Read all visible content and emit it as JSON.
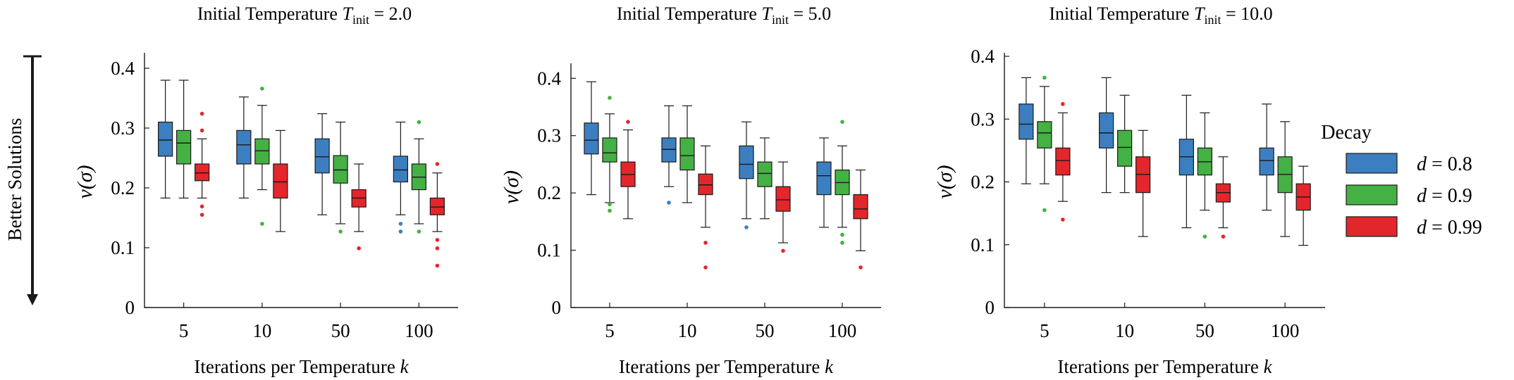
{
  "figure": {
    "side_label": "Better Solutions",
    "side_arrow": "down",
    "legend": {
      "title": "Decay",
      "entries": [
        {
          "label": "d = 0.8",
          "color": "#3c7fc0"
        },
        {
          "label": "d = 0.9",
          "color": "#45b044"
        },
        {
          "label": "d = 0.99",
          "color": "#e3262b"
        }
      ]
    }
  },
  "chart_data": [
    {
      "type": "box",
      "title": "Initial Temperature T_init = 2.0",
      "xlabel": "Iterations per Temperature k",
      "ylabel": "v(σ)",
      "ylim": [
        0,
        0.42
      ],
      "yticks": [
        0,
        0.1,
        0.2,
        0.3,
        0.4
      ],
      "ytick_labels": [
        "0",
        "0.1",
        "0.2",
        "0.3",
        "0.4"
      ],
      "categories": [
        "5",
        "10",
        "50",
        "100"
      ],
      "series": [
        {
          "name": "d = 0.8",
          "color": "#3c7fc0",
          "boxes": [
            {
              "min": 0.183,
              "q1": 0.253,
              "median": 0.28,
              "q3": 0.31,
              "max": 0.38,
              "outliers": []
            },
            {
              "min": 0.183,
              "q1": 0.24,
              "median": 0.272,
              "q3": 0.296,
              "max": 0.352,
              "outliers": []
            },
            {
              "min": 0.155,
              "q1": 0.225,
              "median": 0.252,
              "q3": 0.282,
              "max": 0.324,
              "outliers": []
            },
            {
              "min": 0.155,
              "q1": 0.21,
              "median": 0.23,
              "q3": 0.253,
              "max": 0.31,
              "outliers": [
                0.14,
                0.127
              ]
            }
          ]
        },
        {
          "name": "d = 0.9",
          "color": "#45b044",
          "boxes": [
            {
              "min": 0.183,
              "q1": 0.24,
              "median": 0.275,
              "q3": 0.296,
              "max": 0.38,
              "outliers": []
            },
            {
              "min": 0.197,
              "q1": 0.24,
              "median": 0.262,
              "q3": 0.282,
              "max": 0.338,
              "outliers": [
                0.366,
                0.14
              ]
            },
            {
              "min": 0.14,
              "q1": 0.208,
              "median": 0.23,
              "q3": 0.254,
              "max": 0.31,
              "outliers": [
                0.127
              ]
            },
            {
              "min": 0.14,
              "q1": 0.197,
              "median": 0.218,
              "q3": 0.24,
              "max": 0.282,
              "outliers": [
                0.31,
                0.127
              ]
            }
          ]
        },
        {
          "name": "d = 0.99",
          "color": "#e3262b",
          "boxes": [
            {
              "min": 0.183,
              "q1": 0.212,
              "median": 0.225,
              "q3": 0.24,
              "max": 0.282,
              "outliers": [
                0.324,
                0.296,
                0.169,
                0.155
              ]
            },
            {
              "min": 0.127,
              "q1": 0.183,
              "median": 0.21,
              "q3": 0.24,
              "max": 0.296,
              "outliers": []
            },
            {
              "min": 0.127,
              "q1": 0.168,
              "median": 0.183,
              "q3": 0.197,
              "max": 0.24,
              "outliers": [
                0.099
              ]
            },
            {
              "min": 0.127,
              "q1": 0.155,
              "median": 0.168,
              "q3": 0.183,
              "max": 0.225,
              "outliers": [
                0.24,
                0.113,
                0.099,
                0.07
              ]
            }
          ]
        }
      ]
    },
    {
      "type": "box",
      "title": "Initial Temperature T_init = 5.0",
      "xlabel": "Iterations per Temperature k",
      "ylabel": "v(σ)",
      "ylim": [
        0,
        0.42
      ],
      "yticks": [
        0,
        0.1,
        0.2,
        0.3,
        0.4
      ],
      "ytick_labels": [
        "0",
        "0.1",
        "0.2",
        "0.3",
        "0.4"
      ],
      "categories": [
        "5",
        "10",
        "50",
        "100"
      ],
      "series": [
        {
          "name": "d = 0.8",
          "color": "#3c7fc0",
          "boxes": [
            {
              "min": 0.197,
              "q1": 0.268,
              "median": 0.292,
              "q3": 0.322,
              "max": 0.394,
              "outliers": []
            },
            {
              "min": 0.211,
              "q1": 0.254,
              "median": 0.276,
              "q3": 0.296,
              "max": 0.352,
              "outliers": [
                0.183
              ]
            },
            {
              "min": 0.155,
              "q1": 0.225,
              "median": 0.25,
              "q3": 0.282,
              "max": 0.324,
              "outliers": [
                0.14
              ]
            },
            {
              "min": 0.14,
              "q1": 0.197,
              "median": 0.23,
              "q3": 0.254,
              "max": 0.296,
              "outliers": []
            }
          ]
        },
        {
          "name": "d = 0.9",
          "color": "#45b044",
          "boxes": [
            {
              "min": 0.183,
              "q1": 0.254,
              "median": 0.27,
              "q3": 0.296,
              "max": 0.338,
              "outliers": [
                0.366,
                0.18,
                0.169
              ]
            },
            {
              "min": 0.183,
              "q1": 0.24,
              "median": 0.265,
              "q3": 0.296,
              "max": 0.352,
              "outliers": []
            },
            {
              "min": 0.155,
              "q1": 0.211,
              "median": 0.234,
              "q3": 0.254,
              "max": 0.296,
              "outliers": []
            },
            {
              "min": 0.14,
              "q1": 0.197,
              "median": 0.218,
              "q3": 0.24,
              "max": 0.282,
              "outliers": [
                0.324,
                0.127,
                0.113
              ]
            }
          ]
        },
        {
          "name": "d = 0.99",
          "color": "#e3262b",
          "boxes": [
            {
              "min": 0.155,
              "q1": 0.211,
              "median": 0.232,
              "q3": 0.254,
              "max": 0.31,
              "outliers": [
                0.324
              ]
            },
            {
              "min": 0.14,
              "q1": 0.197,
              "median": 0.214,
              "q3": 0.233,
              "max": 0.282,
              "outliers": [
                0.113,
                0.07
              ]
            },
            {
              "min": 0.113,
              "q1": 0.168,
              "median": 0.188,
              "q3": 0.211,
              "max": 0.254,
              "outliers": [
                0.099
              ]
            },
            {
              "min": 0.099,
              "q1": 0.155,
              "median": 0.172,
              "q3": 0.197,
              "max": 0.24,
              "outliers": [
                0.07
              ]
            }
          ]
        }
      ]
    },
    {
      "type": "box",
      "title": "Initial Temperature T_init = 10.0",
      "xlabel": "Iterations per Temperature k",
      "ylabel": "v(σ)",
      "ylim": [
        0,
        0.4
      ],
      "yticks": [
        0,
        0.1,
        0.2,
        0.3,
        0.4
      ],
      "ytick_labels": [
        "0",
        "0.1",
        "0.2",
        "0.3",
        "0.4"
      ],
      "categories": [
        "5",
        "10",
        "50",
        "100"
      ],
      "series": [
        {
          "name": "d = 0.8",
          "color": "#3c7fc0",
          "boxes": [
            {
              "min": 0.197,
              "q1": 0.268,
              "median": 0.292,
              "q3": 0.324,
              "max": 0.366,
              "outliers": []
            },
            {
              "min": 0.183,
              "q1": 0.254,
              "median": 0.278,
              "q3": 0.31,
              "max": 0.366,
              "outliers": []
            },
            {
              "min": 0.127,
              "q1": 0.211,
              "median": 0.24,
              "q3": 0.268,
              "max": 0.338,
              "outliers": []
            },
            {
              "min": 0.155,
              "q1": 0.211,
              "median": 0.234,
              "q3": 0.254,
              "max": 0.324,
              "outliers": []
            }
          ]
        },
        {
          "name": "d = 0.9",
          "color": "#45b044",
          "boxes": [
            {
              "min": 0.197,
              "q1": 0.254,
              "median": 0.278,
              "q3": 0.296,
              "max": 0.352,
              "outliers": [
                0.366,
                0.155
              ]
            },
            {
              "min": 0.183,
              "q1": 0.225,
              "median": 0.255,
              "q3": 0.282,
              "max": 0.338,
              "outliers": []
            },
            {
              "min": 0.155,
              "q1": 0.211,
              "median": 0.232,
              "q3": 0.254,
              "max": 0.31,
              "outliers": [
                0.113
              ]
            },
            {
              "min": 0.113,
              "q1": 0.183,
              "median": 0.212,
              "q3": 0.24,
              "max": 0.296,
              "outliers": []
            }
          ]
        },
        {
          "name": "d = 0.99",
          "color": "#e3262b",
          "boxes": [
            {
              "min": 0.169,
              "q1": 0.211,
              "median": 0.234,
              "q3": 0.254,
              "max": 0.31,
              "outliers": [
                0.324,
                0.14
              ]
            },
            {
              "min": 0.113,
              "q1": 0.183,
              "median": 0.212,
              "q3": 0.24,
              "max": 0.282,
              "outliers": []
            },
            {
              "min": 0.127,
              "q1": 0.168,
              "median": 0.183,
              "q3": 0.197,
              "max": 0.24,
              "outliers": [
                0.113
              ]
            },
            {
              "min": 0.099,
              "q1": 0.155,
              "median": 0.176,
              "q3": 0.197,
              "max": 0.225,
              "outliers": []
            }
          ]
        }
      ]
    }
  ]
}
